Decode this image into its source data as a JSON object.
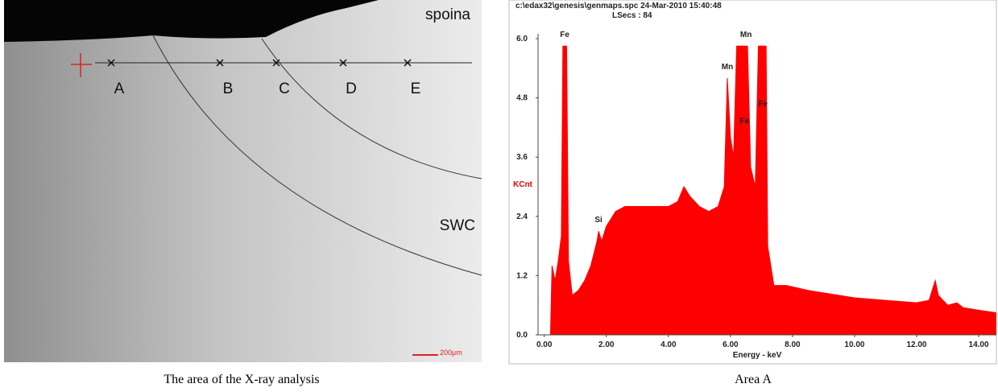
{
  "left_panel": {
    "labels": [
      "spoina",
      "SWC"
    ],
    "points": [
      "A",
      "B",
      "C",
      "D",
      "E"
    ],
    "scale_bar": "200µm"
  },
  "captions": [
    "The area of the X-ray analysis",
    "Area A"
  ],
  "chart_data": {
    "type": "area",
    "header": [
      "c:\\edax32\\genesis\\genmaps.spc  24-Mar-2010 15:40:48",
      "LSecs : 84"
    ],
    "x_label": "Energy - keV",
    "y_label": "KCnt",
    "color": "#ff0000",
    "x": [
      0.2,
      0.25,
      0.35,
      0.45,
      0.55,
      0.6,
      0.72,
      0.78,
      0.9,
      1.1,
      1.3,
      1.5,
      1.7,
      1.75,
      1.85,
      2.0,
      2.3,
      2.6,
      3.0,
      3.5,
      4.0,
      4.3,
      4.5,
      4.7,
      5.0,
      5.3,
      5.6,
      5.8,
      5.9,
      6.0,
      6.1,
      6.2,
      6.55,
      6.65,
      6.8,
      6.9,
      7.15,
      7.2,
      7.4,
      7.8,
      8.5,
      9.0,
      10.0,
      11.0,
      12.0,
      12.4,
      12.6,
      12.7,
      13.0,
      13.3,
      13.5,
      14.0,
      14.55
    ],
    "values": [
      0,
      1.4,
      1.1,
      1.5,
      2.0,
      5.85,
      5.85,
      1.5,
      0.8,
      0.9,
      1.1,
      1.4,
      1.9,
      2.1,
      1.9,
      2.2,
      2.5,
      2.6,
      2.6,
      2.6,
      2.6,
      2.7,
      3.0,
      2.8,
      2.6,
      2.5,
      2.6,
      3.0,
      5.2,
      4.0,
      3.6,
      5.85,
      5.85,
      3.4,
      3.0,
      5.85,
      5.85,
      1.8,
      1.0,
      1.0,
      0.9,
      0.85,
      0.75,
      0.7,
      0.65,
      0.7,
      1.1,
      0.8,
      0.6,
      0.65,
      0.55,
      0.5,
      0.45
    ],
    "xlim": [
      -0.2,
      14.57
    ],
    "ylim": [
      0,
      6
    ],
    "xticks": [
      {
        "value": 0,
        "label": "0.00"
      },
      {
        "value": 2,
        "label": "2.00"
      },
      {
        "value": 4,
        "label": "4.00"
      },
      {
        "value": 6,
        "label": "6.00"
      },
      {
        "value": 8,
        "label": "8.00"
      },
      {
        "value": 10,
        "label": "10.00"
      },
      {
        "value": 12,
        "label": "12.00"
      },
      {
        "value": 14,
        "label": "14.00"
      }
    ],
    "yticks": [
      {
        "value": 0,
        "label": "0.0"
      },
      {
        "value": 1.2,
        "label": "1.2"
      },
      {
        "value": 2.4,
        "label": "2.4"
      },
      {
        "value": 3.6,
        "label": "3.6"
      },
      {
        "value": 4.8,
        "label": "4.8"
      },
      {
        "value": 6,
        "label": "6.0"
      }
    ],
    "annotations": [
      {
        "text": "Fe",
        "x": 0.66,
        "y": 6.0
      },
      {
        "text": "Si",
        "x": 1.75,
        "y": 2.25
      },
      {
        "text": "Mn",
        "x": 5.9,
        "y": 5.35
      },
      {
        "text": "Mn",
        "x": 6.5,
        "y": 6.0
      },
      {
        "text": "Fe",
        "x": 6.45,
        "y": 4.25
      },
      {
        "text": "Fe",
        "x": 7.05,
        "y": 4.6
      }
    ]
  }
}
